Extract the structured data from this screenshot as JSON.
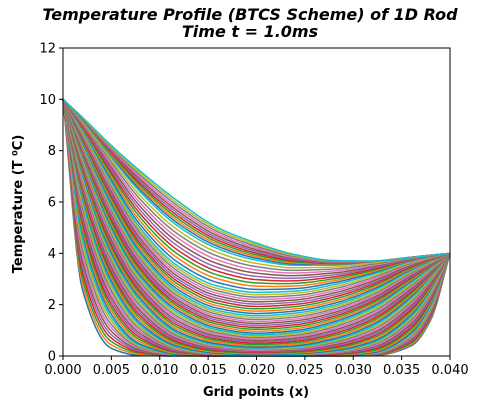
{
  "chart_data": {
    "type": "line",
    "title": "Temperature Profile (BTCS Scheme) of 1D Rod",
    "subtitle": "Time t = 1.0ms",
    "xlabel": "Grid points (x)",
    "ylabel": "Temperature (T ⁰C)",
    "xlim": [
      0.0,
      0.04
    ],
    "ylim": [
      0,
      12
    ],
    "x_ticks": [
      "0.000",
      "0.005",
      "0.010",
      "0.015",
      "0.020",
      "0.025",
      "0.030",
      "0.035",
      "0.040"
    ],
    "y_ticks": [
      "0",
      "2",
      "4",
      "6",
      "8",
      "10",
      "12"
    ],
    "boundary_left": 10,
    "boundary_right": 4,
    "grid": false,
    "legend": "none",
    "palette": [
      "#1f77b4",
      "#ff7f0e",
      "#2ca02c",
      "#d62728",
      "#9467bd",
      "#8c564b",
      "#e377c2",
      "#7f7f7f",
      "#bcbd22",
      "#17becf"
    ],
    "series": [
      {
        "x": [
          0.0,
          0.002,
          0.005,
          0.008,
          0.012,
          0.016,
          0.02,
          0.024,
          0.028,
          0.032,
          0.036,
          0.038,
          0.04
        ],
        "values": [
          10,
          2.6,
          0.3,
          0.02,
          0,
          0,
          0,
          0,
          0,
          0.01,
          0.4,
          1.4,
          4
        ]
      },
      {
        "x": [
          0.0,
          0.002,
          0.005,
          0.008,
          0.012,
          0.016,
          0.02,
          0.024,
          0.028,
          0.032,
          0.036,
          0.038,
          0.04
        ],
        "values": [
          10,
          4.8,
          1.6,
          0.45,
          0.06,
          0.01,
          0,
          0,
          0.01,
          0.12,
          0.9,
          2.0,
          4
        ]
      },
      {
        "x": [
          0.0,
          0.002,
          0.005,
          0.008,
          0.012,
          0.016,
          0.02,
          0.024,
          0.028,
          0.032,
          0.036,
          0.038,
          0.04
        ],
        "values": [
          10,
          6.2,
          2.9,
          1.25,
          0.35,
          0.1,
          0.06,
          0.08,
          0.2,
          0.55,
          1.6,
          2.6,
          4
        ]
      },
      {
        "x": [
          0.0,
          0.002,
          0.005,
          0.008,
          0.012,
          0.016,
          0.02,
          0.024,
          0.028,
          0.032,
          0.036,
          0.038,
          0.04
        ],
        "values": [
          10,
          7.1,
          4.0,
          2.2,
          0.9,
          0.45,
          0.32,
          0.38,
          0.65,
          1.2,
          2.3,
          3.1,
          4
        ]
      },
      {
        "x": [
          0.0,
          0.002,
          0.005,
          0.008,
          0.012,
          0.016,
          0.02,
          0.024,
          0.028,
          0.032,
          0.036,
          0.038,
          0.04
        ],
        "values": [
          10,
          7.8,
          5.0,
          3.1,
          1.7,
          1.05,
          0.85,
          0.95,
          1.3,
          1.9,
          2.9,
          3.45,
          4
        ]
      },
      {
        "x": [
          0.0,
          0.002,
          0.005,
          0.008,
          0.012,
          0.016,
          0.02,
          0.024,
          0.028,
          0.032,
          0.036,
          0.038,
          0.04
        ],
        "values": [
          10,
          8.3,
          5.9,
          4.0,
          2.5,
          1.8,
          1.6,
          1.7,
          2.0,
          2.55,
          3.35,
          3.7,
          4
        ]
      },
      {
        "x": [
          0.0,
          0.002,
          0.005,
          0.008,
          0.012,
          0.016,
          0.02,
          0.024,
          0.028,
          0.032,
          0.036,
          0.038,
          0.04
        ],
        "values": [
          10,
          8.8,
          6.8,
          5.0,
          3.5,
          2.75,
          2.5,
          2.55,
          2.8,
          3.2,
          3.7,
          3.88,
          4
        ]
      },
      {
        "x": [
          0.0,
          0.002,
          0.005,
          0.008,
          0.012,
          0.016,
          0.02,
          0.024,
          0.028,
          0.032,
          0.036,
          0.038,
          0.04
        ],
        "values": [
          10,
          9.2,
          7.75,
          6.4,
          5.05,
          4.2,
          3.75,
          3.55,
          3.55,
          3.68,
          3.85,
          3.93,
          4
        ]
      },
      {
        "x": [
          0.0,
          0.002,
          0.005,
          0.008,
          0.012,
          0.016,
          0.02,
          0.024,
          0.028,
          0.032,
          0.036,
          0.038,
          0.04
        ],
        "values": [
          10,
          9.3,
          8.2,
          7.2,
          6.0,
          5.0,
          4.4,
          3.95,
          3.72,
          3.7,
          3.83,
          3.92,
          4
        ]
      }
    ]
  }
}
